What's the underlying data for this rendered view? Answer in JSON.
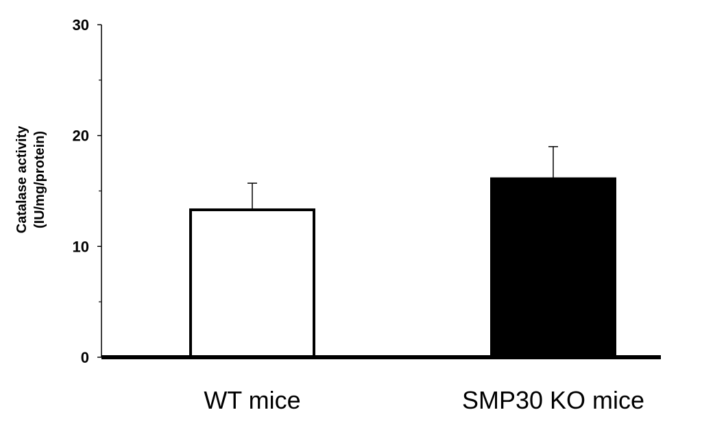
{
  "chart_data": {
    "type": "bar",
    "categories": [
      "WT mice",
      "SMP30 KO mice"
    ],
    "values": [
      13.3,
      16.1
    ],
    "errors": [
      2.4,
      2.9
    ],
    "bar_colors": [
      "#ffffff",
      "#000000"
    ],
    "ylabel_line1": "Catalase activity",
    "ylabel_line2": "(IU/mg/protein)",
    "ylim": [
      0,
      30
    ],
    "yticks": [
      "0",
      "10",
      "20",
      "30"
    ],
    "grid": false
  }
}
